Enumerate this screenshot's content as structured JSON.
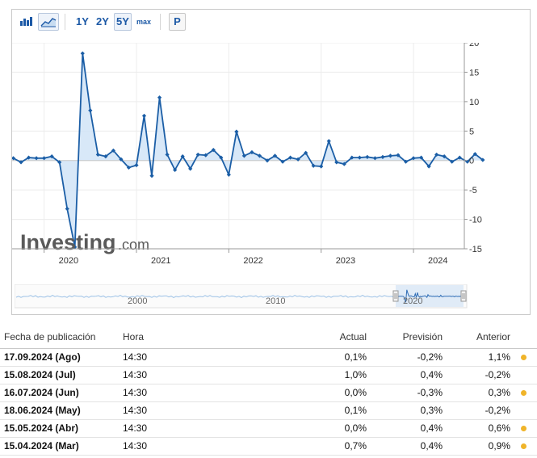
{
  "toolbar": {
    "ranges": [
      "1Y",
      "2Y",
      "5Y",
      "max"
    ],
    "active_range": "5Y",
    "p_label": "P",
    "icons": [
      "bar-chart-icon",
      "area-chart-icon"
    ]
  },
  "colors": {
    "line": "#1b5ea6",
    "fill": "#d4e6f7",
    "positive": "#0ea600",
    "negative": "#e00000",
    "dot": "#f0b429"
  },
  "watermark": {
    "brand": "Investing",
    "suffix": ".com"
  },
  "chart_data": {
    "type": "area",
    "x_ticks": [
      "2020",
      "2021",
      "2022",
      "2023",
      "2024"
    ],
    "y_ticks": [
      "20",
      "15",
      "10",
      "5",
      "0",
      "-5",
      "-10",
      "-15"
    ],
    "ylim": [
      -15,
      20
    ],
    "x_start": "2019-09",
    "x_end": "2024-09",
    "series": [
      {
        "values": [
          0.4,
          -0.3,
          0.5,
          0.4,
          0.4,
          0.7,
          -0.3,
          -8.2,
          -14.7,
          18.2,
          8.5,
          1.0,
          0.7,
          1.7,
          0.2,
          -1.2,
          -0.8,
          7.6,
          -2.6,
          10.7,
          1.0,
          -1.6,
          0.7,
          -1.4,
          1.0,
          0.9,
          1.8,
          0.5,
          -2.4,
          4.9,
          0.8,
          1.4,
          0.8,
          0.0,
          0.8,
          -0.2,
          0.5,
          0.2,
          1.3,
          -0.9,
          -1.0,
          3.3,
          -0.3,
          -0.6,
          0.5,
          0.5,
          0.6,
          0.4,
          0.6,
          0.8,
          0.9,
          -0.2,
          0.4,
          0.5,
          -1.0,
          1.0,
          0.7,
          -0.2,
          0.5,
          -0.2,
          1.1,
          0.1
        ]
      }
    ]
  },
  "navigator": {
    "labels": [
      "2000",
      "2010",
      "2020"
    ]
  },
  "table": {
    "headers": {
      "date": "Fecha de publicación",
      "time": "Hora",
      "actual": "Actual",
      "forecast": "Previsión",
      "previous": "Anterior"
    },
    "rows": [
      {
        "date": "17.09.2024 (Ago)",
        "time": "14:30",
        "actual": "0,1%",
        "forecast": "-0,2%",
        "previous": "1,1%",
        "actual_color": "pos",
        "previous_color": "pos",
        "dot": true
      },
      {
        "date": "15.08.2024 (Jul)",
        "time": "14:30",
        "actual": "1,0%",
        "forecast": "0,4%",
        "previous": "-0,2%",
        "actual_color": "pos",
        "previous_color": "neu",
        "dot": false
      },
      {
        "date": "16.07.2024 (Jun)",
        "time": "14:30",
        "actual": "0,0%",
        "forecast": "-0,3%",
        "previous": "0,3%",
        "actual_color": "pos",
        "previous_color": "pos",
        "dot": true
      },
      {
        "date": "18.06.2024 (May)",
        "time": "14:30",
        "actual": "0,1%",
        "forecast": "0,3%",
        "previous": "-0,2%",
        "actual_color": "neg",
        "previous_color": "neu",
        "dot": false
      },
      {
        "date": "15.05.2024 (Abr)",
        "time": "14:30",
        "actual": "0,0%",
        "forecast": "0,4%",
        "previous": "0,6%",
        "actual_color": "neg",
        "previous_color": "neg",
        "dot": true
      },
      {
        "date": "15.04.2024 (Mar)",
        "time": "14:30",
        "actual": "0,7%",
        "forecast": "0,4%",
        "previous": "0,9%",
        "actual_color": "pos",
        "previous_color": "pos",
        "dot": true
      }
    ]
  }
}
